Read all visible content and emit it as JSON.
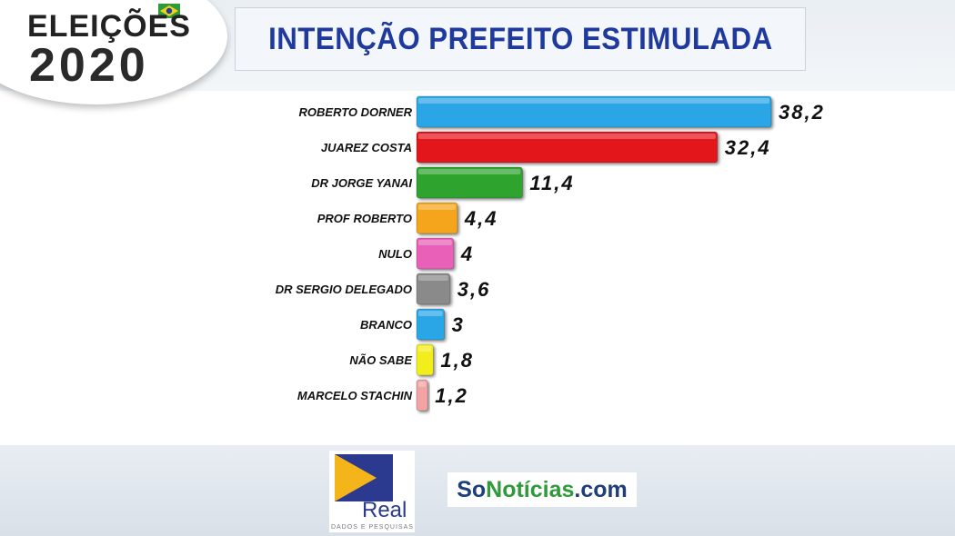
{
  "header": {
    "badge_line1": "ELEIÇÕES",
    "badge_line2": "2020",
    "title": "INTENÇÃO PREFEITO ESTIMULADA"
  },
  "chart_data": {
    "type": "bar",
    "orientation": "horizontal",
    "title": "INTENÇÃO PREFEITO ESTIMULADA",
    "categories": [
      "ROBERTO DORNER",
      "JUAREZ COSTA",
      "DR JORGE YANAI",
      "PROF ROBERTO",
      "NULO",
      "DR SERGIO DELEGADO",
      "BRANCO",
      "NÃO SABE",
      "MARCELO STACHIN"
    ],
    "values": [
      38.2,
      32.4,
      11.4,
      4.4,
      4,
      3.6,
      3,
      1.8,
      1.2
    ],
    "value_labels": [
      "38,2",
      "32,4",
      "11,4",
      "4,4",
      "4",
      "3,6",
      "3",
      "1,8",
      "1,2"
    ],
    "colors": [
      "#2aa6e6",
      "#e3141c",
      "#2ea32e",
      "#f5a51c",
      "#e860b8",
      "#8a8a8a",
      "#2aa6e6",
      "#f2ee1a",
      "#f2a3a3"
    ],
    "grid": false,
    "legend": "none"
  },
  "footer": {
    "real_name": "Real",
    "real_subtitle": "DADOS E PESQUISAS",
    "site_part1": "So",
    "site_part2": "Notícias",
    "site_part3": ".com"
  }
}
